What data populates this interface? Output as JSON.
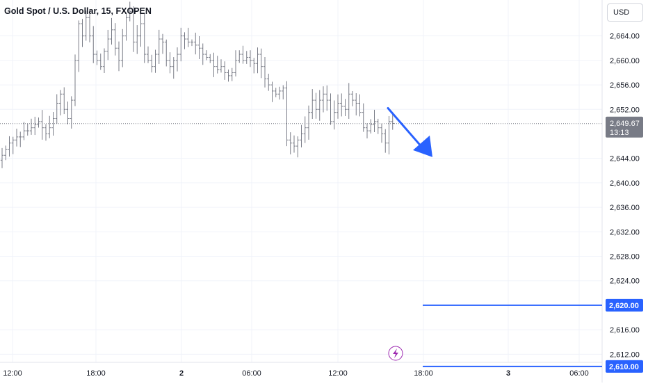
{
  "header": {
    "symbol": "Gold Spot / U.S. Dollar",
    "interval": "15",
    "exchange": "FXOPEN",
    "currency": "USD"
  },
  "colors": {
    "grid": "#f0f3fa",
    "bar": "#787b86",
    "arrow": "#2962ff",
    "level_line": "#2962ff",
    "price_badge": "#787b86"
  },
  "chart_data": {
    "type": "ohlc-bar",
    "symbol": "Gold Spot / U.S. Dollar, 15, FXOPEN",
    "y_axis": {
      "unit": "USD",
      "ticks": [
        "2,664.00",
        "2,660.00",
        "2,656.00",
        "2,652.00",
        "2,644.00",
        "2,640.00",
        "2,636.00",
        "2,632.00",
        "2,628.00",
        "2,624.00",
        "2,616.00",
        "2,612.00"
      ],
      "range": [
        2608.4,
        2667.2
      ]
    },
    "x_axis": {
      "ticks": [
        {
          "label": "12:00",
          "bold": false
        },
        {
          "label": "18:00",
          "bold": false
        },
        {
          "label": "2",
          "bold": true
        },
        {
          "label": "06:00",
          "bold": false
        },
        {
          "label": "12:00",
          "bold": false
        },
        {
          "label": "18:00",
          "bold": false
        },
        {
          "label": "3",
          "bold": true
        },
        {
          "label": "06:00",
          "bold": false
        }
      ]
    },
    "bars_close": [
      2644.5,
      2645.5,
      2646.5,
      2647.0,
      2647.5,
      2647.5,
      2648.5,
      2648.5,
      2649.0,
      2649.5,
      2650.0,
      2649.0,
      2648.0,
      2649.0,
      2650.5,
      2653.0,
      2654.5,
      2652.0,
      2650.5,
      2653.5,
      2660.0,
      2666.0,
      2664.0,
      2667.0,
      2664.0,
      2661.0,
      2660.0,
      2659.0,
      2661.5,
      2663.5,
      2665.0,
      2662.0,
      2660.0,
      2664.0,
      2667.0,
      2668.0,
      2663.0,
      2664.0,
      2666.0,
      2661.0,
      2660.0,
      2659.0,
      2661.0,
      2663.5,
      2663.0,
      2660.0,
      2659.0,
      2660.0,
      2661.0,
      2664.0,
      2663.5,
      2663.0,
      2663.0,
      2662.5,
      2662.0,
      2661.0,
      2660.5,
      2660.0,
      2659.0,
      2658.5,
      2659.0,
      2658.0,
      2657.5,
      2658.0,
      2660.0,
      2661.0,
      2660.0,
      2660.5,
      2660.0,
      2659.5,
      2661.0,
      2659.0,
      2657.0,
      2656.0,
      2655.0,
      2654.5,
      2655.0,
      2655.5,
      2647.0,
      2646.5,
      2646.0,
      2647.0,
      2648.0,
      2649.0,
      2651.5,
      2653.5,
      2652.0,
      2653.5,
      2654.5,
      2653.5,
      2650.0,
      2651.5,
      2653.0,
      2652.5,
      2652.0,
      2654.5,
      2653.5,
      2653.0,
      2651.5,
      2649.0,
      2648.5,
      2649.5,
      2650.0,
      2649.0,
      2648.0,
      2646.5,
      2650.0,
      2649.7
    ],
    "last_price": "2,649.67",
    "countdown": "13:13",
    "price_levels": [
      {
        "price": 2620.0,
        "label": "2,620.00"
      },
      {
        "price": 2610.0,
        "label": "2,610.00"
      }
    ],
    "annotation": {
      "type": "arrow",
      "direction": "down-right",
      "from_price": 2652.2,
      "to_price": 2644.2
    },
    "grid": true
  }
}
